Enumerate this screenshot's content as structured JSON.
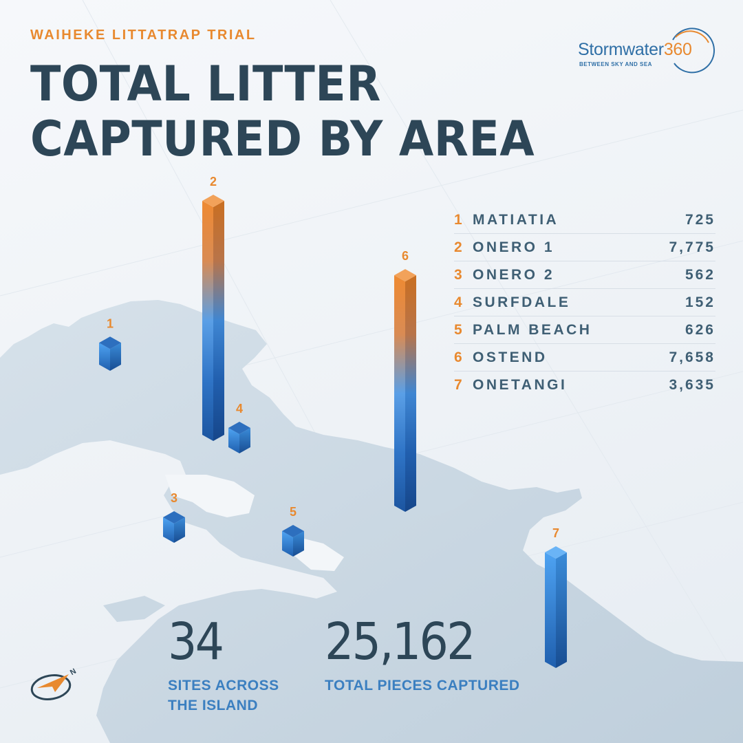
{
  "eyebrow": "WAIHEKE LITTATRAP TRIAL",
  "title": {
    "line1": "TOTAL LITTER",
    "line2": "CAPTURED BY AREA"
  },
  "logo": {
    "name": "Stormwater",
    "number": "360",
    "registered": "®",
    "tagline": "BETWEEN SKY AND SEA"
  },
  "areas": [
    {
      "num": "1",
      "name": "MATIATIA",
      "value": "725",
      "count": 725
    },
    {
      "num": "2",
      "name": "ONERO 1",
      "value": "7,775",
      "count": 7775
    },
    {
      "num": "3",
      "name": "ONERO 2",
      "value": "562",
      "count": 562
    },
    {
      "num": "4",
      "name": "SURFDALE",
      "value": "152",
      "count": 152
    },
    {
      "num": "5",
      "name": "PALM BEACH",
      "value": "626",
      "count": 626
    },
    {
      "num": "6",
      "name": "OSTEND",
      "value": "7,658",
      "count": 7658
    },
    {
      "num": "7",
      "name": "ONETANGI",
      "value": "3,635",
      "count": 3635
    }
  ],
  "stats": {
    "sites": {
      "value": "34",
      "label_line1": "SITES ACROSS",
      "label_line2": "THE ISLAND"
    },
    "pieces": {
      "value": "25,162",
      "label": "TOTAL PIECES CAPTURED"
    }
  },
  "compass": {
    "letter": "N",
    "icon": "compass-arrow-icon"
  },
  "colors": {
    "accent": "#e8892f",
    "heading": "#2d4657",
    "label_blue": "#3b7fc0",
    "land": "#cad8e3",
    "bar_dark": "#1f5fae",
    "bar_light": "#4ea3f2",
    "bar_orange": "#ee8a32"
  }
}
